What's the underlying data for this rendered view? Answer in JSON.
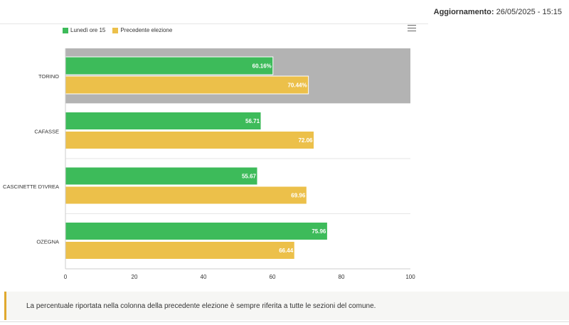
{
  "header": {
    "update_label": "Aggiornamento:",
    "update_value": "26/05/2025 - 15:15"
  },
  "colors": {
    "current": "#3dbb5a",
    "previous": "#ecc04a",
    "highlight": "#b3b3b3"
  },
  "chart_data": {
    "type": "bar",
    "orientation": "horizontal",
    "categories": [
      "TORINO",
      "CAFASSE",
      "CASCINETTE D'IVREA",
      "OZEGNA"
    ],
    "series": [
      {
        "name": "Lunedì ore 15",
        "values": [
          60.16,
          56.71,
          55.67,
          75.96
        ],
        "labels": [
          "60.16%",
          "56.71",
          "55.67",
          "75.96"
        ]
      },
      {
        "name": "Precedente elezione",
        "values": [
          70.44,
          72.06,
          69.96,
          66.44
        ],
        "labels": [
          "70.44%",
          "72.06",
          "69.96",
          "66.44"
        ]
      }
    ],
    "xlim": [
      0,
      100
    ],
    "xticks": [
      0,
      20,
      40,
      60,
      80,
      100
    ],
    "highlighted_category": "TORINO",
    "legend_position": "top-left"
  },
  "note": {
    "text": "La percentuale riportata nella colonna della precedente elezione è sempre riferita a tutte le sezioni del comune."
  }
}
